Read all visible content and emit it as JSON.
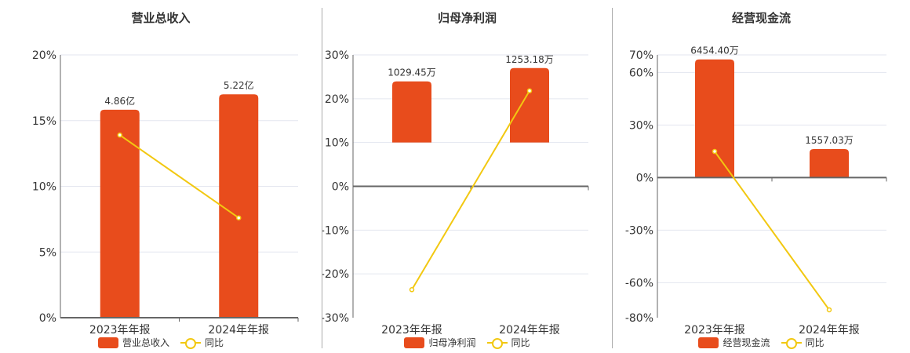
{
  "colors": {
    "bar": "#E84C1C",
    "line": "#F2C811"
  },
  "chart_data": [
    {
      "type": "bar+line",
      "title": "营业总收入",
      "categories": [
        "2023年年报",
        "2024年年报"
      ],
      "bar_series": {
        "name": "营业总收入",
        "values": [
          4.86,
          5.22
        ],
        "labels": [
          "4.86亿",
          "5.22亿"
        ],
        "unit": "亿"
      },
      "line_series": {
        "name": "同比",
        "values": [
          13.9,
          7.6
        ]
      },
      "yticks": [
        0,
        5,
        10,
        15,
        20
      ],
      "ytick_labels": [
        "0%",
        "5%",
        "10%",
        "15%",
        "20%"
      ],
      "ylim": [
        0,
        20
      ],
      "bar_axis": [
        0,
        6.14
      ]
    },
    {
      "type": "bar+line",
      "title": "归母净利润",
      "categories": [
        "2023年年报",
        "2024年年报"
      ],
      "bar_series": {
        "name": "归母净利润",
        "values": [
          1029.45,
          1253.18
        ],
        "labels": [
          "1029.45万",
          "1253.18万"
        ],
        "unit": "万"
      },
      "line_series": {
        "name": "同比",
        "values": [
          -23.6,
          21.8
        ]
      },
      "yticks": [
        -30,
        -20,
        -10,
        0,
        10,
        20,
        30
      ],
      "ytick_labels": [
        "-30%",
        "-20%",
        "-10%",
        "0%",
        "10%",
        "20%",
        "30%"
      ],
      "ylim": [
        -30,
        30
      ],
      "bar_axis": [
        -2950,
        1475
      ]
    },
    {
      "type": "bar+line",
      "title": "经营现金流",
      "categories": [
        "2023年年报",
        "2024年年报"
      ],
      "bar_series": {
        "name": "经营现金流",
        "values": [
          6454.4,
          1557.03
        ],
        "labels": [
          "6454.40万",
          "1557.03万"
        ],
        "unit": "万"
      },
      "line_series": {
        "name": "同比",
        "values": [
          14.9,
          -75.5
        ]
      },
      "yticks": [
        -80,
        -60,
        -30,
        0,
        30,
        60,
        70
      ],
      "ytick_labels": [
        "-80%",
        "-60%",
        "-30%",
        "0%",
        "30%",
        "60%",
        "70%"
      ],
      "ylim": [
        -80,
        70
      ],
      "bar_axis": [
        -7660,
        6700
      ]
    }
  ]
}
